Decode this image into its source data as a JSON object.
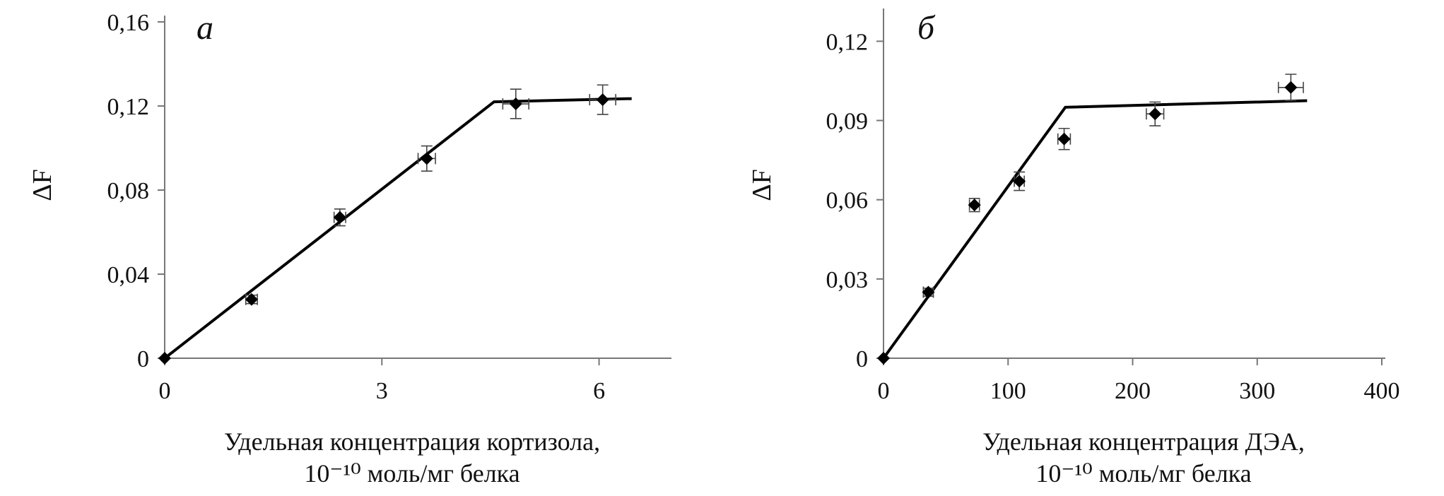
{
  "chart_data": [
    {
      "type": "scatter",
      "panel_label": "а",
      "xlabel_line1": "Удельная концентрация кортизола,",
      "xlabel_line2": "10⁻¹⁰ моль/мг белка",
      "ylabel": "ΔF",
      "xlim": [
        0,
        7
      ],
      "ylim": [
        0,
        0.16
      ],
      "x_ticks": [
        0,
        3,
        6
      ],
      "x_tick_labels": [
        "0",
        "3",
        "6"
      ],
      "y_ticks": [
        0,
        0.04,
        0.08,
        0.12,
        0.16
      ],
      "y_tick_labels": [
        "0",
        "0,04",
        "0,08",
        "0,12",
        "0,16"
      ],
      "grid": false,
      "points": [
        {
          "x": 0,
          "y": 0,
          "xerr": 0,
          "yerr": 0
        },
        {
          "x": 1.2,
          "y": 0.028,
          "xerr": 0.08,
          "yerr": 0.002
        },
        {
          "x": 2.42,
          "y": 0.067,
          "xerr": 0.08,
          "yerr": 0.004
        },
        {
          "x": 3.62,
          "y": 0.095,
          "xerr": 0.12,
          "yerr": 0.006
        },
        {
          "x": 4.85,
          "y": 0.121,
          "xerr": 0.18,
          "yerr": 0.007
        },
        {
          "x": 6.05,
          "y": 0.123,
          "xerr": 0.18,
          "yerr": 0.007
        }
      ],
      "fit_line": [
        {
          "x": 0,
          "y": 0
        },
        {
          "x": 4.55,
          "y": 0.122
        },
        {
          "x": 6.45,
          "y": 0.1235
        }
      ]
    },
    {
      "type": "scatter",
      "panel_label": "б",
      "xlabel_line1": "Удельная концентрация ДЭА,",
      "xlabel_line2": "10⁻¹⁰ моль/мг белка",
      "ylabel": "ΔF",
      "xlim": [
        0,
        400
      ],
      "ylim": [
        0,
        0.13
      ],
      "x_ticks": [
        0,
        100,
        200,
        300,
        400
      ],
      "x_tick_labels": [
        "0",
        "100",
        "200",
        "300",
        "400"
      ],
      "y_ticks": [
        0,
        0.03,
        0.06,
        0.09,
        0.12
      ],
      "y_tick_labels": [
        "0",
        "0,03",
        "0,06",
        "0,09",
        "0,12"
      ],
      "grid": false,
      "points": [
        {
          "x": 0,
          "y": 0,
          "xerr": 0,
          "yerr": 0
        },
        {
          "x": 36,
          "y": 0.025,
          "xerr": 4,
          "yerr": 0.0015
        },
        {
          "x": 73,
          "y": 0.058,
          "xerr": 4,
          "yerr": 0.0025
        },
        {
          "x": 109,
          "y": 0.067,
          "xerr": 4,
          "yerr": 0.0035
        },
        {
          "x": 145,
          "y": 0.083,
          "xerr": 5,
          "yerr": 0.004
        },
        {
          "x": 218,
          "y": 0.0925,
          "xerr": 7,
          "yerr": 0.0045
        },
        {
          "x": 327,
          "y": 0.1025,
          "xerr": 10,
          "yerr": 0.005
        }
      ],
      "fit_line": [
        {
          "x": 0,
          "y": 0
        },
        {
          "x": 146,
          "y": 0.095
        },
        {
          "x": 340,
          "y": 0.0975
        }
      ]
    }
  ]
}
